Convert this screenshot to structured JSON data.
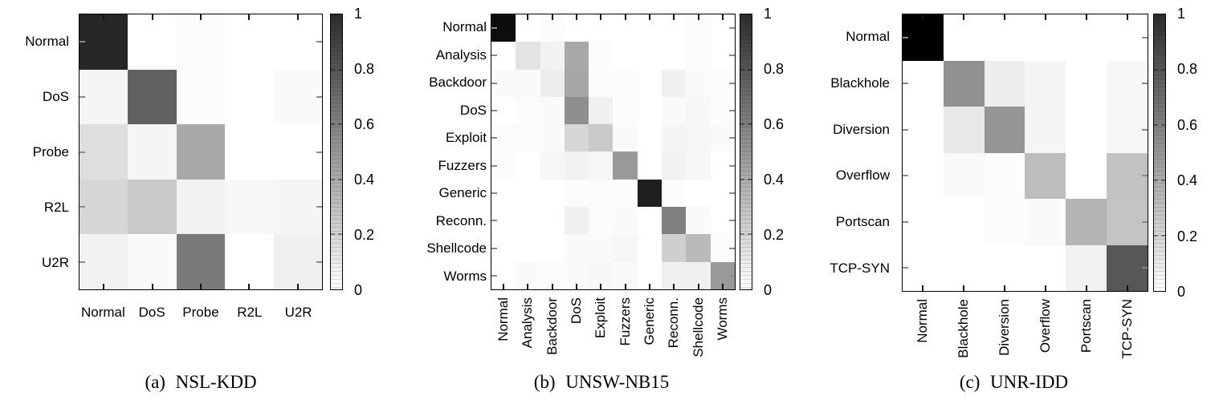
{
  "figure": {
    "colorbar_ticks": [
      "1",
      "0.8",
      "0.6",
      "0.4",
      "0.2",
      "0"
    ],
    "colorbar_range": [
      0,
      1
    ],
    "colors": {
      "cell_high": "#000000",
      "cell_low": "#ffffff",
      "plot_border": "#000000",
      "text": "#000000"
    }
  },
  "chart_data": [
    {
      "type": "heatmap",
      "panel": "a",
      "caption_index": "(a)",
      "caption_title": "NSL-KDD",
      "categories": [
        "Normal",
        "DoS",
        "Probe",
        "R2L",
        "U2R"
      ],
      "x_tick_rotation_deg": 0,
      "value_range": [
        0,
        1
      ],
      "legend_position": "right-colorbar",
      "values": [
        [
          0.85,
          0.0,
          0.01,
          0.0,
          0.0
        ],
        [
          0.04,
          0.62,
          0.01,
          0.0,
          0.02
        ],
        [
          0.13,
          0.04,
          0.34,
          0.0,
          0.0
        ],
        [
          0.16,
          0.21,
          0.05,
          0.03,
          0.04
        ],
        [
          0.05,
          0.02,
          0.52,
          0.0,
          0.06
        ]
      ]
    },
    {
      "type": "heatmap",
      "panel": "b",
      "caption_index": "(b)",
      "caption_title": "UNSW-NB15",
      "categories": [
        "Normal",
        "Analysis",
        "Backdoor",
        "DoS",
        "Exploit",
        "Fuzzers",
        "Generic",
        "Reconn.",
        "Shellcode",
        "Worms"
      ],
      "x_tick_rotation_deg": 90,
      "value_range": [
        0,
        1
      ],
      "legend_position": "right-colorbar",
      "values": [
        [
          0.95,
          0.0,
          0.01,
          0.0,
          0.0,
          0.0,
          0.0,
          0.0,
          0.01,
          0.0
        ],
        [
          0.0,
          0.11,
          0.05,
          0.34,
          0.01,
          0.0,
          0.0,
          0.0,
          0.01,
          0.0
        ],
        [
          0.02,
          0.02,
          0.07,
          0.35,
          0.01,
          0.01,
          0.0,
          0.06,
          0.02,
          0.01
        ],
        [
          0.0,
          0.01,
          0.02,
          0.44,
          0.06,
          0.01,
          0.0,
          0.02,
          0.03,
          0.01
        ],
        [
          0.01,
          0.01,
          0.02,
          0.16,
          0.21,
          0.02,
          0.0,
          0.04,
          0.03,
          0.02
        ],
        [
          0.01,
          0.0,
          0.03,
          0.05,
          0.03,
          0.4,
          0.0,
          0.05,
          0.03,
          0.0
        ],
        [
          0.0,
          0.0,
          0.0,
          0.01,
          0.01,
          0.01,
          0.88,
          0.01,
          0.0,
          0.0
        ],
        [
          0.0,
          0.0,
          0.0,
          0.06,
          0.01,
          0.02,
          0.0,
          0.5,
          0.02,
          0.0
        ],
        [
          0.0,
          0.0,
          0.0,
          0.02,
          0.02,
          0.03,
          0.0,
          0.19,
          0.27,
          0.01
        ],
        [
          0.0,
          0.02,
          0.01,
          0.02,
          0.03,
          0.02,
          0.0,
          0.06,
          0.06,
          0.4
        ]
      ]
    },
    {
      "type": "heatmap",
      "panel": "c",
      "caption_index": "(c)",
      "caption_title": "UNR-IDD",
      "categories": [
        "Normal",
        "Blackhole",
        "Diversion",
        "Overflow",
        "Portscan",
        "TCP-SYN"
      ],
      "x_tick_rotation_deg": 90,
      "value_range": [
        0,
        1
      ],
      "legend_position": "right-colorbar",
      "values": [
        [
          1.0,
          0.0,
          0.0,
          0.0,
          0.0,
          0.0
        ],
        [
          0.0,
          0.43,
          0.07,
          0.04,
          0.0,
          0.03
        ],
        [
          0.0,
          0.09,
          0.41,
          0.04,
          0.0,
          0.03
        ],
        [
          0.0,
          0.02,
          0.01,
          0.26,
          0.0,
          0.24
        ],
        [
          0.0,
          0.0,
          0.01,
          0.02,
          0.29,
          0.23
        ],
        [
          0.0,
          0.0,
          0.0,
          0.0,
          0.05,
          0.66
        ]
      ]
    }
  ]
}
